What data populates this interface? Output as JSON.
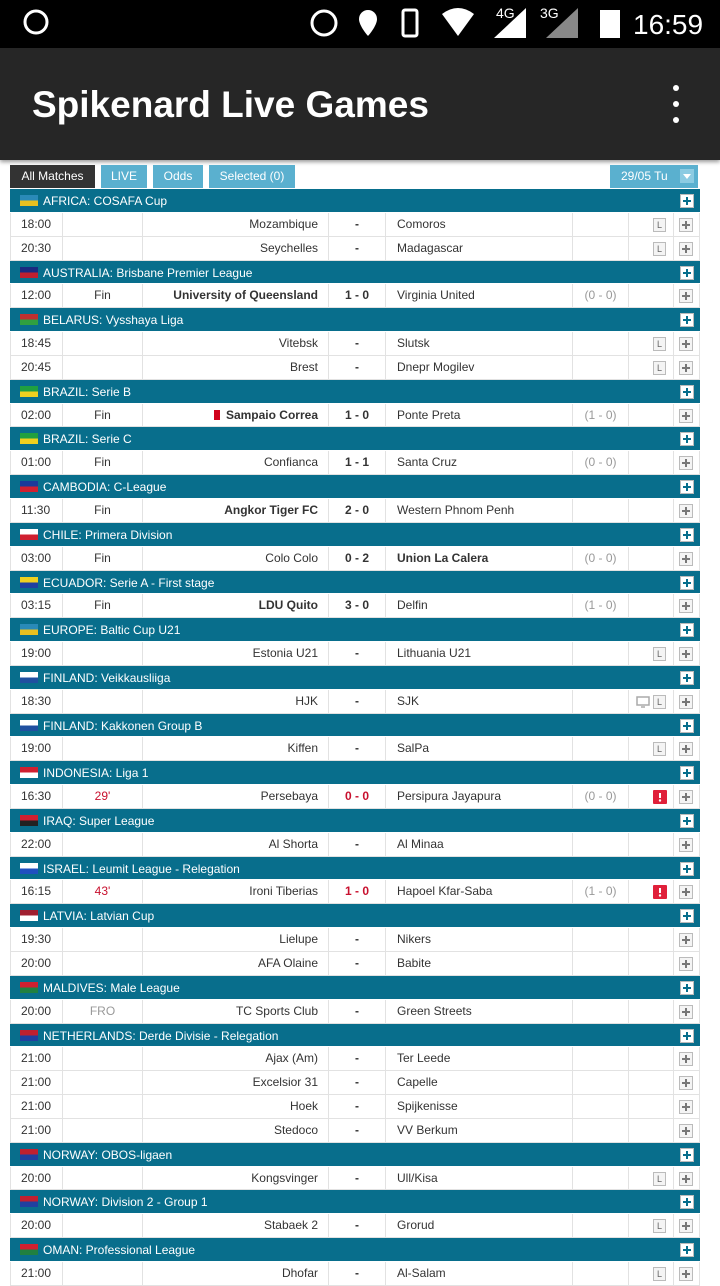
{
  "status_bar": {
    "time": "16:59",
    "net1": "4G",
    "net2": "3G"
  },
  "header": {
    "title": "Spikenard Live Games"
  },
  "tabs": [
    {
      "label": "All Matches",
      "active": true
    },
    {
      "label": "LIVE"
    },
    {
      "label": "Odds"
    },
    {
      "label": "Selected (0)"
    }
  ],
  "date": "29/05 Tu",
  "leagues": [
    {
      "name": "AFRICA: COSAFA Cup",
      "flag": [
        "#2a8ab8",
        "#e8c020"
      ],
      "matches": [
        {
          "time": "18:00",
          "home": "Mozambique",
          "score": "-",
          "away": "Comoros",
          "badge": "L"
        },
        {
          "time": "20:30",
          "home": "Seychelles",
          "score": "-",
          "away": "Madagascar",
          "badge": "L"
        }
      ]
    },
    {
      "name": "AUSTRALIA: Brisbane Premier League",
      "flag": [
        "#1a2a80",
        "#c02030"
      ],
      "matches": [
        {
          "time": "12:00",
          "status": "Fin",
          "home": "University of Queensland",
          "score": "1 - 0",
          "away": "Virginia United",
          "ht": "(0 - 0)",
          "winner": "home"
        }
      ]
    },
    {
      "name": "BELARUS: Vysshaya Liga",
      "flag": [
        "#c03030",
        "#30a040"
      ],
      "matches": [
        {
          "time": "18:45",
          "home": "Vitebsk",
          "score": "-",
          "away": "Slutsk",
          "badge": "L"
        },
        {
          "time": "20:45",
          "home": "Brest",
          "score": "-",
          "away": "Dnepr Mogilev",
          "badge": "L"
        }
      ]
    },
    {
      "name": "BRAZIL: Serie B",
      "flag": [
        "#20a040",
        "#f0d020"
      ],
      "matches": [
        {
          "time": "02:00",
          "status": "Fin",
          "home": "Sampaio Correa",
          "red_card": true,
          "score": "1 - 0",
          "away": "Ponte Preta",
          "ht": "(1 - 0)",
          "winner": "home"
        }
      ]
    },
    {
      "name": "BRAZIL: Serie C",
      "flag": [
        "#20a040",
        "#f0d020"
      ],
      "matches": [
        {
          "time": "01:00",
          "status": "Fin",
          "home": "Confianca",
          "score": "1 - 1",
          "away": "Santa Cruz",
          "ht": "(0 - 0)"
        }
      ]
    },
    {
      "name": "CAMBODIA: C-League",
      "flag": [
        "#1a3a9a",
        "#d02030"
      ],
      "matches": [
        {
          "time": "11:30",
          "status": "Fin",
          "home": "Angkor Tiger FC",
          "score": "2 - 0",
          "away": "Western Phnom Penh",
          "winner": "home"
        }
      ]
    },
    {
      "name": "CHILE: Primera Division",
      "flag": [
        "#ffffff",
        "#d02030"
      ],
      "matches": [
        {
          "time": "03:00",
          "status": "Fin",
          "home": "Colo Colo",
          "score": "0 - 2",
          "away": "Union La Calera",
          "ht": "(0 - 0)",
          "winner": "away"
        }
      ]
    },
    {
      "name": "ECUADOR: Serie A - First stage",
      "flag": [
        "#f0d020",
        "#2040a0"
      ],
      "matches": [
        {
          "time": "03:15",
          "status": "Fin",
          "home": "LDU Quito",
          "score": "3 - 0",
          "away": "Delfin",
          "ht": "(1 - 0)",
          "winner": "home"
        }
      ]
    },
    {
      "name": "EUROPE: Baltic Cup U21",
      "flag": [
        "#2a8ab8",
        "#e8c020"
      ],
      "matches": [
        {
          "time": "19:00",
          "home": "Estonia U21",
          "score": "-",
          "away": "Lithuania U21",
          "badge": "L"
        }
      ]
    },
    {
      "name": "FINLAND: Veikkausliiga",
      "flag": [
        "#ffffff",
        "#2050a0"
      ],
      "matches": [
        {
          "time": "18:30",
          "home": "HJK",
          "score": "-",
          "away": "SJK",
          "tv": true,
          "badge": "L"
        }
      ]
    },
    {
      "name": "FINLAND: Kakkonen Group B",
      "flag": [
        "#ffffff",
        "#2050a0"
      ],
      "matches": [
        {
          "time": "19:00",
          "home": "Kiffen",
          "score": "-",
          "away": "SalPa",
          "badge": "L"
        }
      ]
    },
    {
      "name": "INDONESIA: Liga 1",
      "flag": [
        "#d02030",
        "#ffffff"
      ],
      "matches": [
        {
          "time": "16:30",
          "status": "29'",
          "live": true,
          "home": "Persebaya",
          "score": "0 - 0",
          "away": "Persipura Jayapura",
          "ht": "(0 - 0)",
          "alert": true
        }
      ]
    },
    {
      "name": "IRAQ: Super League",
      "flag": [
        "#d02030",
        "#222222"
      ],
      "matches": [
        {
          "time": "22:00",
          "home": "Al Shorta",
          "score": "-",
          "away": "Al Minaa"
        }
      ]
    },
    {
      "name": "ISRAEL: Leumit League - Relegation",
      "flag": [
        "#ffffff",
        "#2050c0"
      ],
      "matches": [
        {
          "time": "16:15",
          "status": "43'",
          "live": true,
          "home": "Ironi Tiberias",
          "score": "1 - 0",
          "away": "Hapoel Kfar-Saba",
          "ht": "(1 - 0)",
          "alert": true
        }
      ]
    },
    {
      "name": "LATVIA: Latvian Cup",
      "flag": [
        "#a02030",
        "#ffffff"
      ],
      "matches": [
        {
          "time": "19:30",
          "home": "Lielupe",
          "score": "-",
          "away": "Nikers"
        },
        {
          "time": "20:00",
          "home": "AFA Olaine",
          "score": "-",
          "away": "Babite"
        }
      ]
    },
    {
      "name": "MALDIVES: Male League",
      "flag": [
        "#d02030",
        "#208040"
      ],
      "matches": [
        {
          "time": "20:00",
          "status": "FRO",
          "muted": true,
          "home": "TC Sports Club",
          "score": "-",
          "away": "Green Streets"
        }
      ]
    },
    {
      "name": "NETHERLANDS: Derde Divisie - Relegation",
      "flag": [
        "#c02030",
        "#2040a0"
      ],
      "matches": [
        {
          "time": "21:00",
          "home": "Ajax (Am)",
          "score": "-",
          "away": "Ter Leede"
        },
        {
          "time": "21:00",
          "home": "Excelsior 31",
          "score": "-",
          "away": "Capelle"
        },
        {
          "time": "21:00",
          "home": "Hoek",
          "score": "-",
          "away": "Spijkenisse"
        },
        {
          "time": "21:00",
          "home": "Stedoco",
          "score": "-",
          "away": "VV Berkum"
        }
      ]
    },
    {
      "name": "NORWAY: OBOS-ligaen",
      "flag": [
        "#c02030",
        "#2040a0"
      ],
      "matches": [
        {
          "time": "20:00",
          "home": "Kongsvinger",
          "score": "-",
          "away": "Ull/Kisa",
          "badge": "L"
        }
      ]
    },
    {
      "name": "NORWAY: Division 2 - Group 1",
      "flag": [
        "#c02030",
        "#2040a0"
      ],
      "matches": [
        {
          "time": "20:00",
          "home": "Stabaek 2",
          "score": "-",
          "away": "Grorud",
          "badge": "L"
        }
      ]
    },
    {
      "name": "OMAN: Professional League",
      "flag": [
        "#d02030",
        "#208040"
      ],
      "matches": [
        {
          "time": "21:00",
          "home": "Dhofar",
          "score": "-",
          "away": "Al-Salam",
          "badge": "L"
        }
      ]
    }
  ]
}
